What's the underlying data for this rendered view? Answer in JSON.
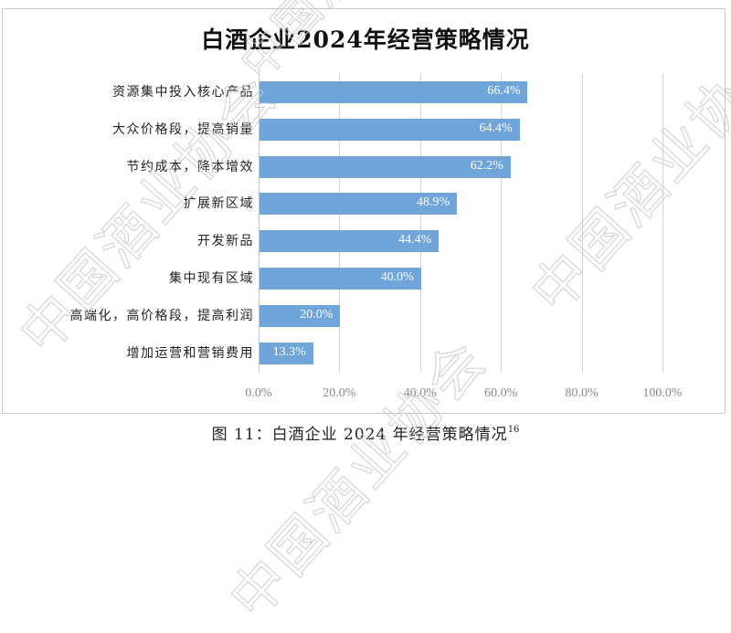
{
  "chart_data": {
    "type": "bar",
    "orientation": "horizontal",
    "title": "白酒企业2024年经营策略情况",
    "categories": [
      "资源集中投入核心产品",
      "大众价格段，提高销量",
      "节约成本，降本增效",
      "扩展新区域",
      "开发新品",
      "集中现有区域",
      "高端化，高价格段，提高利润",
      "增加运营和营销费用"
    ],
    "values": [
      66.4,
      64.4,
      62.2,
      48.9,
      44.4,
      40.0,
      20.0,
      13.3
    ],
    "value_labels": [
      "66.4%",
      "64.4%",
      "62.2%",
      "48.9%",
      "44.4%",
      "40.0%",
      "20.0%",
      "13.3%"
    ],
    "xlabel": "",
    "ylabel": "",
    "xlim": [
      0,
      100
    ],
    "x_ticks": [
      "0.0%",
      "20.0%",
      "40.0%",
      "60.0%",
      "80.0%",
      "100.0%"
    ],
    "grid": "vertical",
    "legend": "none",
    "bar_color": "#6fa5d9"
  },
  "caption": {
    "text": "图 11：白酒企业 2024 年经营策略情况",
    "footnote": "16"
  },
  "watermark": {
    "text": "中国酒业协会"
  }
}
